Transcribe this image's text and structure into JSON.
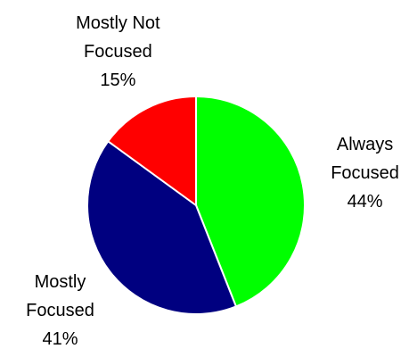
{
  "chart_data": {
    "type": "pie",
    "categories": [
      "Always Focused",
      "Mostly Focused",
      "Mostly Not Focused"
    ],
    "values": [
      44,
      41,
      15
    ],
    "value_labels": [
      "44%",
      "41%",
      "15%"
    ],
    "colors": [
      "#00ff00",
      "#000080",
      "#ff0000"
    ]
  }
}
